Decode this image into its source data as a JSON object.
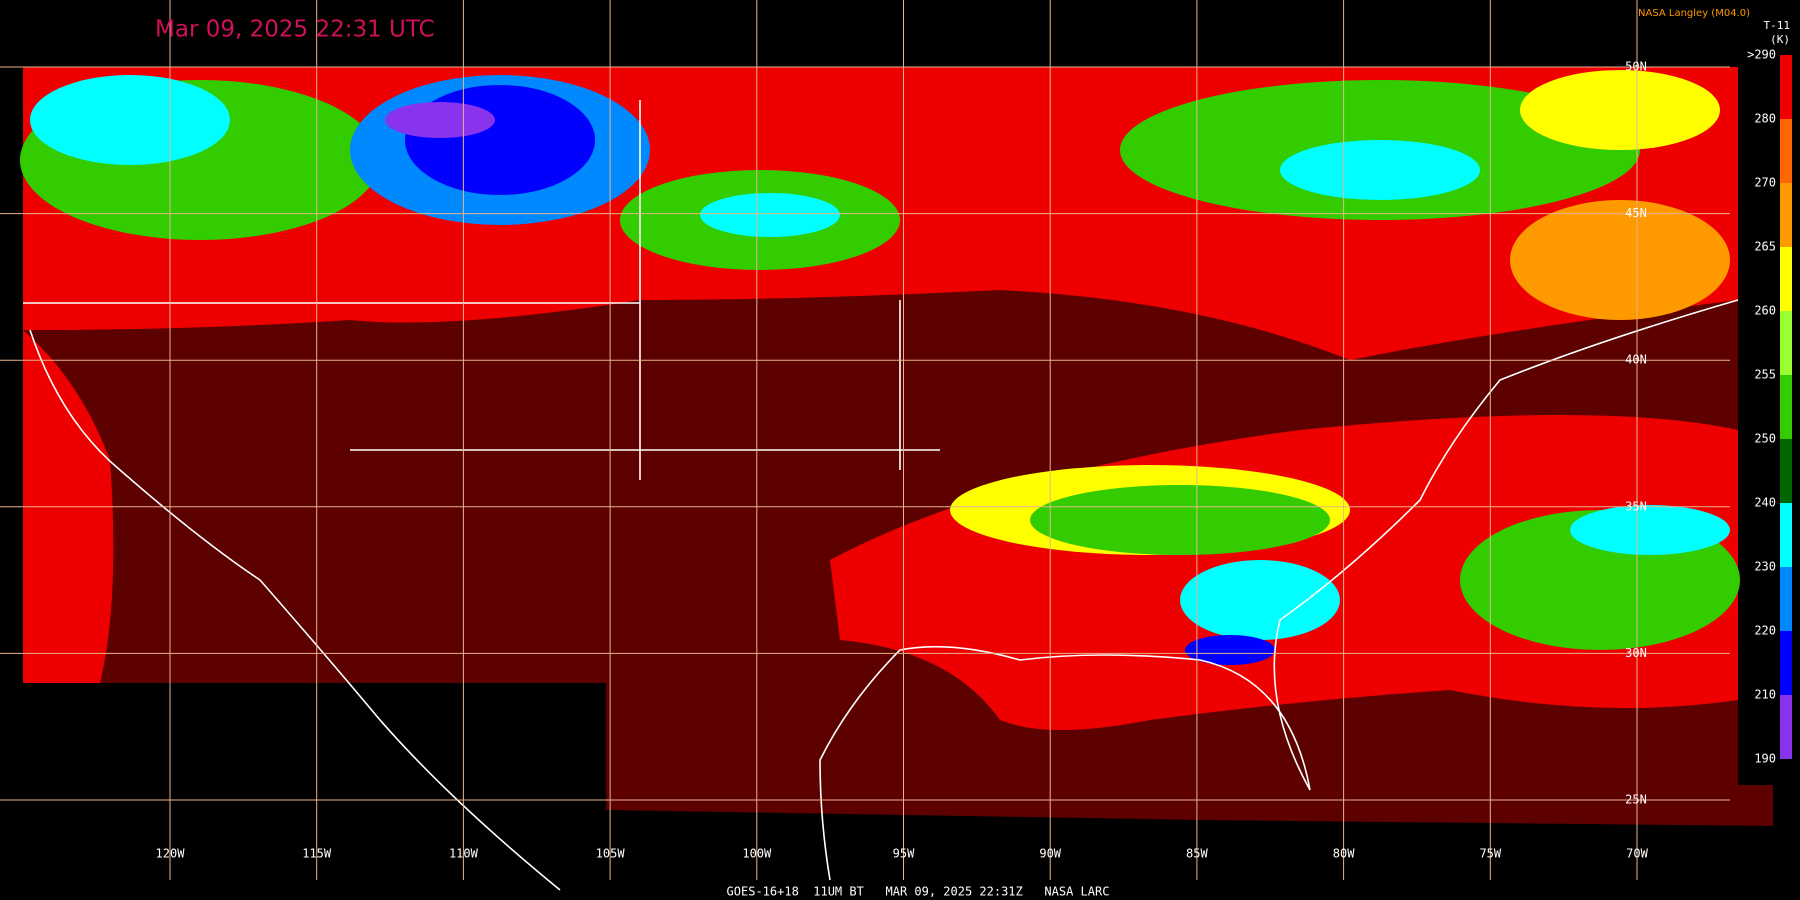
{
  "header": {
    "timestamp": "Mar 09, 2025 22:31 UTC",
    "credit": "NASA Langley (M04.0)",
    "product": "T-11",
    "unit": "(K)"
  },
  "map": {
    "lon_labels": [
      "120W",
      "115W",
      "110W",
      "105W",
      "100W",
      "95W",
      "90W",
      "85W",
      "80W",
      "75W",
      "70W"
    ],
    "lat_labels": [
      "50N",
      "45N",
      "40N",
      "35N",
      "30N",
      "25N"
    ]
  },
  "colorbar": {
    "ticks": [
      ">290",
      280,
      270,
      265,
      260,
      255,
      250,
      240,
      230,
      220,
      210,
      190
    ],
    "colors": [
      "#ee0000",
      "#ff6600",
      "#ff9900",
      "#ffff00",
      "#99ff33",
      "#33cc00",
      "#006600",
      "#00ffff",
      "#0088ff",
      "#0000ff",
      "#8833ee"
    ]
  },
  "footer": "GOES-16+18  11UM BT   MAR 09, 2025 22:31Z   NASA LARC"
}
